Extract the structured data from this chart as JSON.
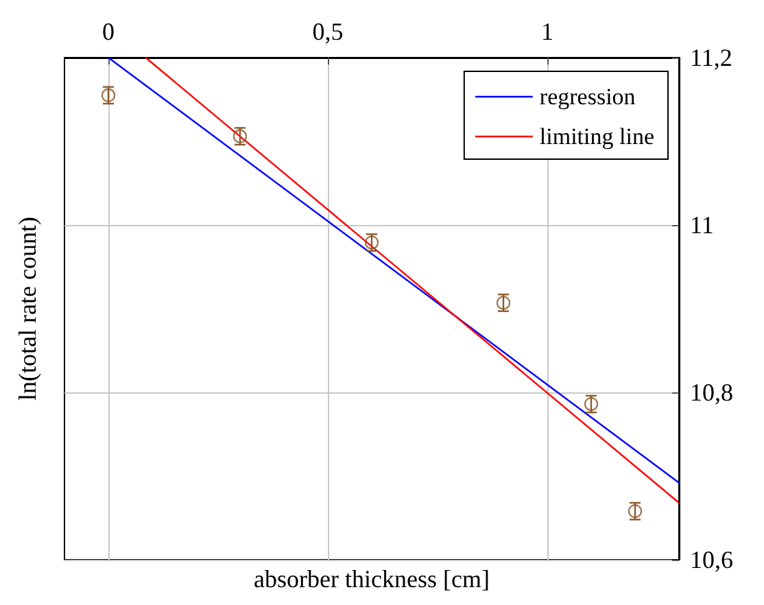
{
  "chart_data": {
    "type": "scatter",
    "xlabel": "absorber thickness [cm]",
    "ylabel": "ln(total rate count)",
    "xlim": [
      -0.1,
      1.3
    ],
    "ylim": [
      10.6,
      11.2
    ],
    "xticks": [
      0,
      {
        "value": 0.5,
        "label": "0,5"
      },
      1
    ],
    "yticks": [
      {
        "value": 10.6,
        "label": "10,6"
      },
      {
        "value": 10.8,
        "label": "10,8"
      },
      11,
      {
        "value": 11.2,
        "label": "11,2"
      }
    ],
    "grid": true,
    "legend": "top right",
    "series": [
      {
        "marker": "circle",
        "color": "#8b5a2b",
        "x": [
          0,
          0.3,
          0.6,
          0.9,
          1.1,
          1.2
        ],
        "values": [
          11.155,
          11.106,
          10.979,
          10.907,
          10.786,
          10.658
        ],
        "errors": [
          0.01,
          0.01,
          0.01,
          0.01,
          0.01,
          0.01
        ]
      },
      {
        "type": "line",
        "name": "regression",
        "color": "#0000ff",
        "x": [
          0,
          1.3
        ],
        "values": [
          11.2,
          10.692
        ]
      },
      {
        "type": "line",
        "name": "limiting line",
        "color": "#ff0000",
        "x": [
          0.085,
          1.3
        ],
        "values": [
          11.2,
          10.668
        ]
      }
    ]
  }
}
